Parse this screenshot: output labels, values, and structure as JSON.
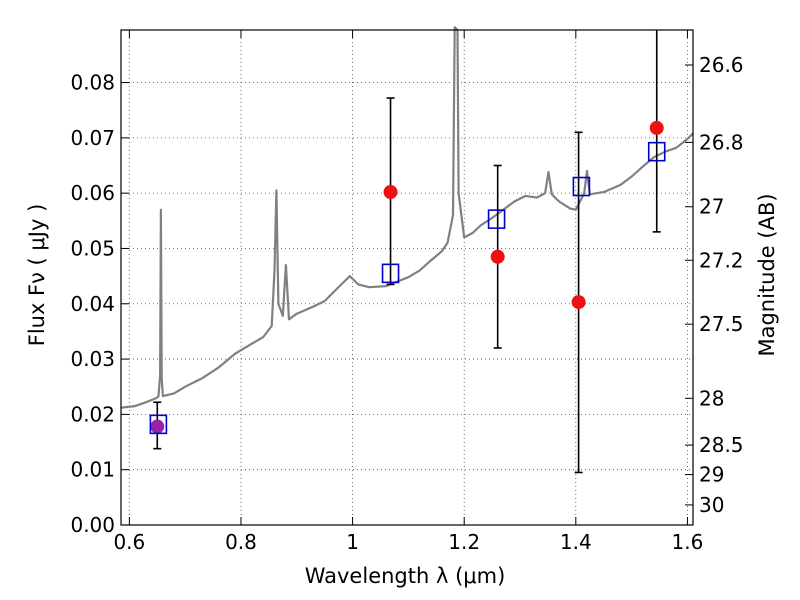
{
  "chart_data": {
    "type": "scatter",
    "xlabel": "Wavelength  λ (μm)",
    "ylabel": "Flux  Fν  ( μJy )",
    "ylabel_right": "Magnitude (AB)",
    "xlim": [
      0.585,
      1.61
    ],
    "ylim": [
      0.0,
      0.0895
    ],
    "grid": true,
    "x_ticks": [
      0.6,
      0.8,
      1.0,
      1.2,
      1.4,
      1.6
    ],
    "x_tick_labels": [
      "0.6",
      "0.8",
      "1",
      "1.2",
      "1.4",
      "1.6"
    ],
    "y_ticks": [
      0.0,
      0.01,
      0.02,
      0.03,
      0.04,
      0.05,
      0.06,
      0.07,
      0.08
    ],
    "y_tick_labels": [
      "0.00",
      "0.01",
      "0.02",
      "0.03",
      "0.04",
      "0.05",
      "0.06",
      "0.07",
      "0.08"
    ],
    "right_ticks_mag": [
      26.6,
      26.8,
      27,
      27.2,
      27.5,
      28,
      28.5,
      29,
      30
    ],
    "right_tick_labels": [
      "26.6",
      "26.8",
      "27",
      "27.2",
      "27.5",
      "28",
      "28.5",
      "29",
      "30"
    ],
    "colors": {
      "spectrum": "#808080",
      "observed": "#ee1111",
      "model": "#0000cc",
      "overlap": "#9922aa",
      "errorbar": "#000000"
    },
    "series": [
      {
        "kind": "model-spectrum",
        "points": [
          [
            0.585,
            0.0212
          ],
          [
            0.61,
            0.0215
          ],
          [
            0.63,
            0.0222
          ],
          [
            0.645,
            0.0228
          ],
          [
            0.652,
            0.0232
          ],
          [
            0.655,
            0.027
          ],
          [
            0.6565,
            0.057
          ],
          [
            0.658,
            0.0265
          ],
          [
            0.66,
            0.0233
          ],
          [
            0.68,
            0.0238
          ],
          [
            0.7,
            0.025
          ],
          [
            0.73,
            0.0265
          ],
          [
            0.76,
            0.0285
          ],
          [
            0.79,
            0.031
          ],
          [
            0.82,
            0.0328
          ],
          [
            0.84,
            0.034
          ],
          [
            0.855,
            0.036
          ],
          [
            0.86,
            0.046
          ],
          [
            0.8635,
            0.0605
          ],
          [
            0.867,
            0.04
          ],
          [
            0.875,
            0.0378
          ],
          [
            0.8805,
            0.047
          ],
          [
            0.886,
            0.0372
          ],
          [
            0.9,
            0.0382
          ],
          [
            0.93,
            0.0395
          ],
          [
            0.95,
            0.0405
          ],
          [
            0.97,
            0.0425
          ],
          [
            0.985,
            0.044
          ],
          [
            0.995,
            0.045
          ],
          [
            1.01,
            0.0435
          ],
          [
            1.03,
            0.043
          ],
          [
            1.06,
            0.0432
          ],
          [
            1.08,
            0.044
          ],
          [
            1.1,
            0.0448
          ],
          [
            1.12,
            0.046
          ],
          [
            1.14,
            0.0478
          ],
          [
            1.16,
            0.0495
          ],
          [
            1.17,
            0.051
          ],
          [
            1.18,
            0.056
          ],
          [
            1.183,
            0.09
          ],
          [
            1.188,
            0.0895
          ],
          [
            1.19,
            0.06
          ],
          [
            1.2,
            0.052
          ],
          [
            1.215,
            0.0528
          ],
          [
            1.23,
            0.0542
          ],
          [
            1.25,
            0.0555
          ],
          [
            1.27,
            0.057
          ],
          [
            1.29,
            0.0585
          ],
          [
            1.31,
            0.0595
          ],
          [
            1.33,
            0.0592
          ],
          [
            1.345,
            0.06
          ],
          [
            1.351,
            0.0638
          ],
          [
            1.357,
            0.0598
          ],
          [
            1.37,
            0.0585
          ],
          [
            1.39,
            0.0572
          ],
          [
            1.4,
            0.057
          ],
          [
            1.415,
            0.06
          ],
          [
            1.42,
            0.064
          ],
          [
            1.425,
            0.0598
          ],
          [
            1.45,
            0.0602
          ],
          [
            1.48,
            0.0615
          ],
          [
            1.5,
            0.063
          ],
          [
            1.52,
            0.0648
          ],
          [
            1.54,
            0.0665
          ],
          [
            1.56,
            0.0675
          ],
          [
            1.58,
            0.0682
          ],
          [
            1.6,
            0.0698
          ],
          [
            1.61,
            0.0708
          ]
        ]
      },
      {
        "kind": "observed-points",
        "points": [
          {
            "x": 0.65,
            "y": 0.0178,
            "yerr_low": 0.0138,
            "yerr_high": 0.0222
          },
          {
            "x": 1.068,
            "y": 0.0602,
            "yerr_low": 0.0435,
            "yerr_high": 0.0772
          },
          {
            "x": 1.26,
            "y": 0.0485,
            "yerr_low": 0.032,
            "yerr_high": 0.065
          },
          {
            "x": 1.405,
            "y": 0.0403,
            "yerr_low": 0.0095,
            "yerr_high": 0.071
          },
          {
            "x": 1.545,
            "y": 0.0718,
            "yerr_low": 0.053,
            "yerr_high": 0.091
          }
        ]
      },
      {
        "kind": "model-photometry",
        "points": [
          {
            "x": 0.652,
            "y": 0.0182
          },
          {
            "x": 1.068,
            "y": 0.0455
          },
          {
            "x": 1.258,
            "y": 0.0553
          },
          {
            "x": 1.41,
            "y": 0.0612
          },
          {
            "x": 1.545,
            "y": 0.0675
          }
        ]
      }
    ]
  }
}
